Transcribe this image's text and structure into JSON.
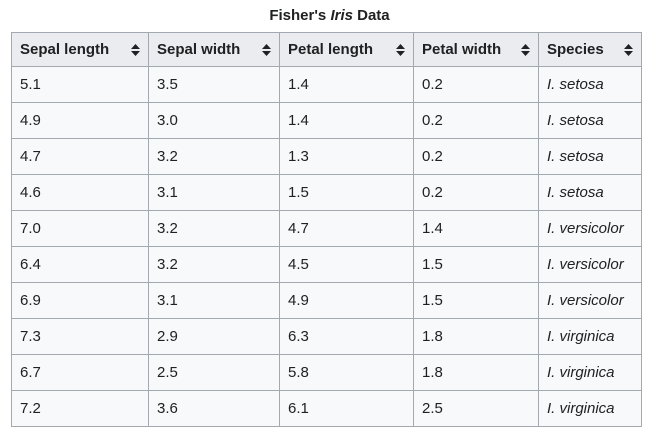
{
  "caption": {
    "prefix": "Fisher's ",
    "emphasis": "Iris",
    "suffix": " Data"
  },
  "table": {
    "columns": [
      {
        "label": "Sepal length",
        "icon": "sort-icon"
      },
      {
        "label": "Sepal width",
        "icon": "sort-icon"
      },
      {
        "label": "Petal length",
        "icon": "sort-icon"
      },
      {
        "label": "Petal width",
        "icon": "sort-icon"
      },
      {
        "label": "Species",
        "icon": "sort-icon"
      }
    ],
    "rows": [
      [
        "5.1",
        "3.5",
        "1.4",
        "0.2",
        "I. setosa"
      ],
      [
        "4.9",
        "3.0",
        "1.4",
        "0.2",
        "I. setosa"
      ],
      [
        "4.7",
        "3.2",
        "1.3",
        "0.2",
        "I. setosa"
      ],
      [
        "4.6",
        "3.1",
        "1.5",
        "0.2",
        "I. setosa"
      ],
      [
        "7.0",
        "3.2",
        "4.7",
        "1.4",
        "I. versicolor"
      ],
      [
        "6.4",
        "3.2",
        "4.5",
        "1.5",
        "I. versicolor"
      ],
      [
        "6.9",
        "3.1",
        "4.9",
        "1.5",
        "I. versicolor"
      ],
      [
        "7.3",
        "2.9",
        "6.3",
        "1.8",
        "I. virginica"
      ],
      [
        "6.7",
        "2.5",
        "5.8",
        "1.8",
        "I. virginica"
      ],
      [
        "7.2",
        "3.6",
        "6.1",
        "2.5",
        "I. virginica"
      ]
    ]
  },
  "colors": {
    "header_bg": "#eaecf0",
    "cell_bg": "#f8f9fa",
    "border": "#a2a9b1",
    "text": "#202122"
  }
}
